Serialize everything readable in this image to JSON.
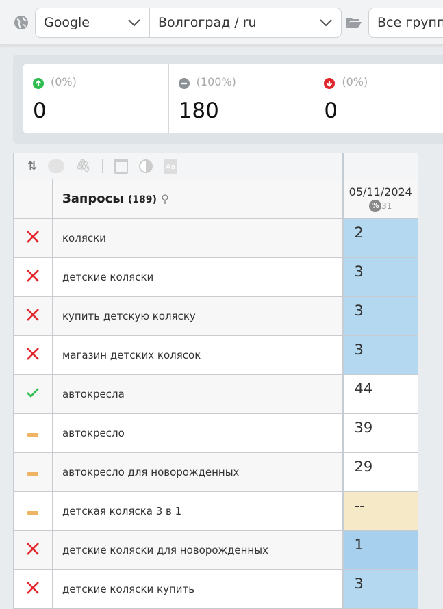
{
  "toolbar": {
    "engine": "Google",
    "region": "Волгоград / ru",
    "group": "Все группы"
  },
  "stats": [
    {
      "pct": "(0%)",
      "value": "0",
      "icon": "arrow-up-circle-icon",
      "color": "#2ebd4e"
    },
    {
      "pct": "(100%)",
      "value": "180",
      "icon": "minus-circle-icon",
      "color": "#8c9196"
    },
    {
      "pct": "(0%)",
      "value": "0",
      "icon": "arrow-down-circle-icon",
      "color": "#e0262b"
    }
  ],
  "table": {
    "queries_label": "Запросы",
    "queries_count": "(189)",
    "date": "05/11/2024",
    "pct_icon": "%",
    "pct_count": "31",
    "rows": [
      {
        "status": "cross",
        "query": "коляски",
        "pos": "2",
        "bg": "#b4d8ef"
      },
      {
        "status": "cross",
        "query": "детские коляски",
        "pos": "3",
        "bg": "#b4d8ef"
      },
      {
        "status": "cross",
        "query": "купить детскую коляску",
        "pos": "3",
        "bg": "#b4d8ef"
      },
      {
        "status": "cross",
        "query": "магазин детских колясок",
        "pos": "3",
        "bg": "#b4d8ef"
      },
      {
        "status": "check",
        "query": "автокресла",
        "pos": "44",
        "bg": "#ffffff"
      },
      {
        "status": "dash",
        "query": "автокресло",
        "pos": "39",
        "bg": "#ffffff"
      },
      {
        "status": "dash",
        "query": "автокресло для новорожденных",
        "pos": "29",
        "bg": "#ffffff"
      },
      {
        "status": "dash",
        "query": "детская коляска 3 в 1",
        "pos": "--",
        "bg": "#f6e9c8"
      },
      {
        "status": "cross",
        "query": "детские коляски для новорожденных",
        "pos": "1",
        "bg": "#a6d0ed"
      },
      {
        "status": "cross",
        "query": "детские коляски купить",
        "pos": "3",
        "bg": "#b4d8ef"
      }
    ]
  }
}
